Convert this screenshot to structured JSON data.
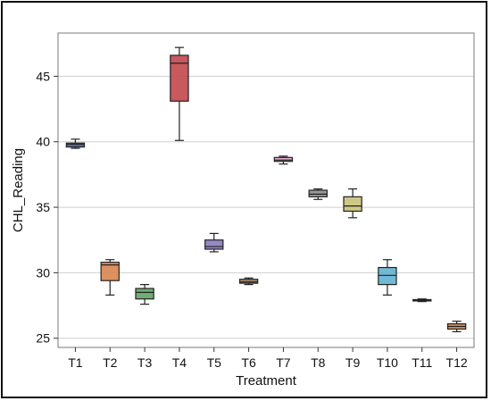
{
  "chart_data": {
    "type": "box",
    "title": "",
    "xlabel": "Treatment",
    "ylabel": "CHL_Reading",
    "ylim": [
      24.3,
      48.3
    ],
    "yticks": [
      25,
      30,
      35,
      40,
      45
    ],
    "grid": "horizontal",
    "categories": [
      "T1",
      "T2",
      "T3",
      "T4",
      "T5",
      "T6",
      "T7",
      "T8",
      "T9",
      "T10",
      "T11",
      "T12"
    ],
    "boxes": [
      {
        "label": "T1",
        "min": 39.5,
        "q1": 39.6,
        "median": 39.8,
        "q3": 39.9,
        "max": 40.2,
        "color": "#4a5f9a"
      },
      {
        "label": "T2",
        "min": 28.3,
        "q1": 29.4,
        "median": 30.6,
        "q3": 30.8,
        "max": 31.0,
        "color": "#d9844f"
      },
      {
        "label": "T3",
        "min": 27.6,
        "q1": 28.0,
        "median": 28.5,
        "q3": 28.8,
        "max": 29.1,
        "color": "#5fa463"
      },
      {
        "label": "T4",
        "min": 40.1,
        "q1": 43.1,
        "median": 46.0,
        "q3": 46.6,
        "max": 47.2,
        "color": "#c2474b"
      },
      {
        "label": "T5",
        "min": 31.6,
        "q1": 31.8,
        "median": 32.0,
        "q3": 32.5,
        "max": 33.0,
        "color": "#8a7cc0"
      },
      {
        "label": "T6",
        "min": 29.1,
        "q1": 29.2,
        "median": 29.3,
        "q3": 29.5,
        "max": 29.6,
        "color": "#9a7a62"
      },
      {
        "label": "T7",
        "min": 38.3,
        "q1": 38.5,
        "median": 38.6,
        "q3": 38.8,
        "max": 38.9,
        "color": "#e7a2d2"
      },
      {
        "label": "T8",
        "min": 35.6,
        "q1": 35.8,
        "median": 36.0,
        "q3": 36.3,
        "max": 36.4,
        "color": "#8f8f8f"
      },
      {
        "label": "T9",
        "min": 34.2,
        "q1": 34.7,
        "median": 35.1,
        "q3": 35.8,
        "max": 36.4,
        "color": "#c9c27a"
      },
      {
        "label": "T10",
        "min": 28.3,
        "q1": 29.1,
        "median": 29.8,
        "q3": 30.4,
        "max": 31.0,
        "color": "#62b2d0"
      },
      {
        "label": "T11",
        "min": 27.8,
        "q1": 27.85,
        "median": 27.9,
        "q3": 27.95,
        "max": 28.0,
        "color": "#4a5f9a"
      },
      {
        "label": "T12",
        "min": 25.5,
        "q1": 25.7,
        "median": 25.9,
        "q3": 26.1,
        "max": 26.3,
        "color": "#d9844f"
      }
    ]
  }
}
